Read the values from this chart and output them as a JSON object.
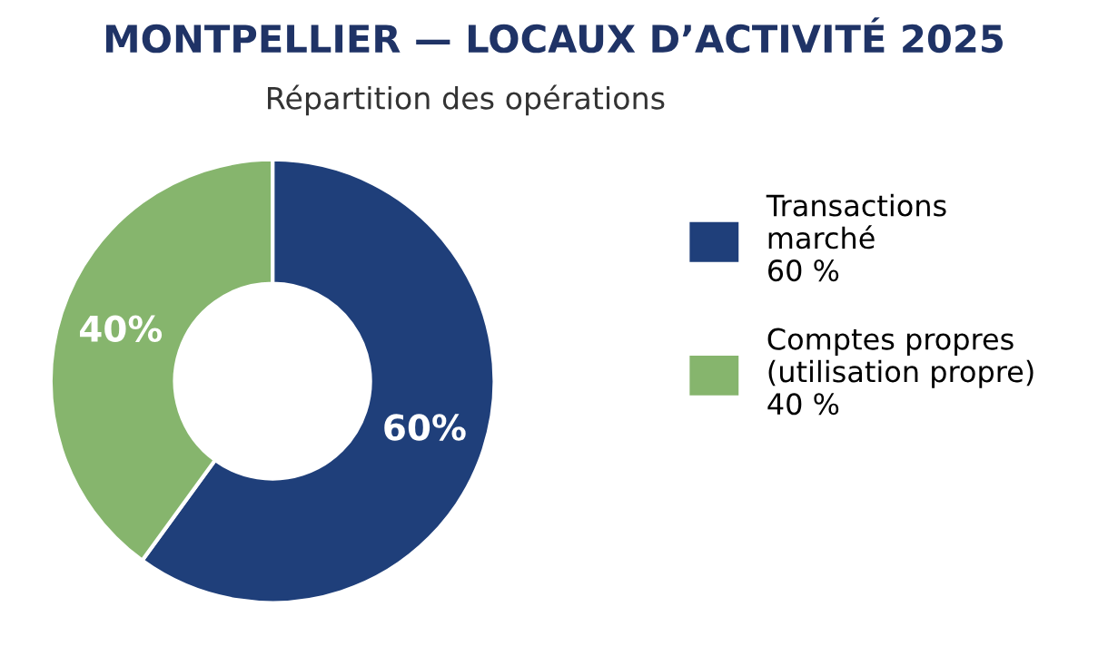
{
  "chart_data": {
    "type": "donut",
    "title": "MONTPELLIER — LOCAUX D’ACTIVITÉ 2025",
    "subtitle": "Répartition des opérations",
    "categories": [
      "Transactions\nmarché\n60 %",
      "Comptes propres\n(utilisation propre)\n40 %"
    ],
    "values": [
      60,
      40
    ],
    "colors": [
      "#1f3f7a",
      "#86b56d"
    ],
    "value_labels": [
      "60%",
      "40%"
    ],
    "legend": "right"
  }
}
